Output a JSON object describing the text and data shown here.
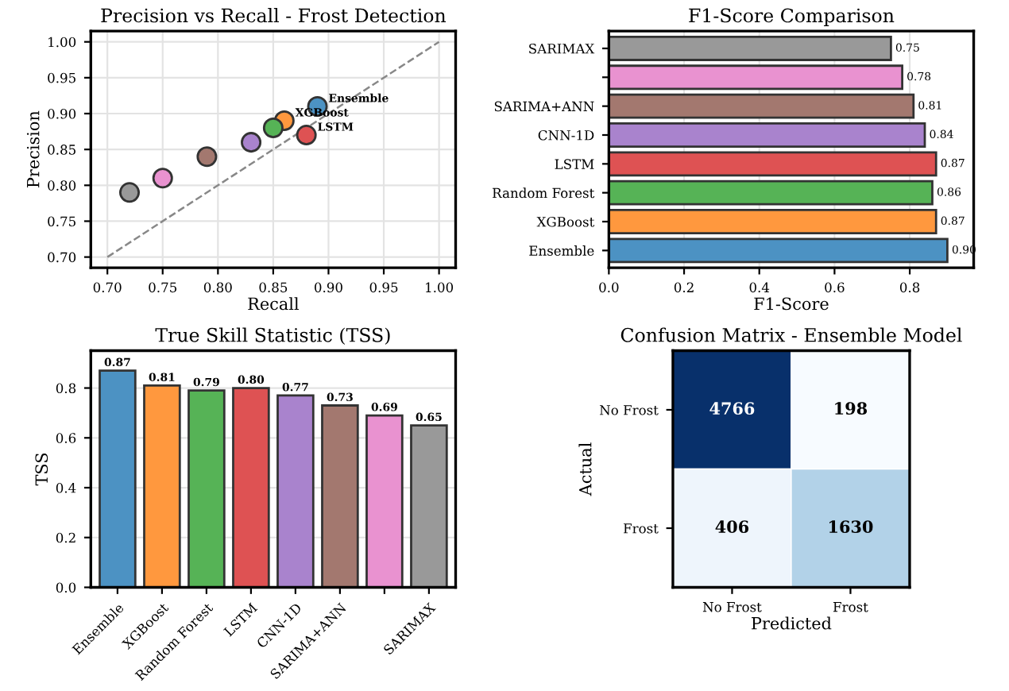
{
  "chart_data": [
    {
      "type": "scatter",
      "title": "Precision vs Recall - Frost Detection",
      "xlabel": "Recall",
      "ylabel": "Precision",
      "series": [
        {
          "type": "scatter",
          "x": [
            0.89,
            0.86,
            0.85,
            0.88,
            0.83,
            0.79,
            0.75,
            0.72
          ],
          "values": [
            0.91,
            0.89,
            0.88,
            0.87,
            0.86,
            0.84,
            0.81,
            0.79
          ],
          "colors": [
            "#4c92c3",
            "#ff983e",
            "#56b356",
            "#de5253",
            "#a983cd",
            "#a3786f",
            "#e992d0",
            "#999999"
          ],
          "marker": "circle"
        },
        {
          "type": "line",
          "x": [
            0.7,
            1.0
          ],
          "values": [
            0.7,
            1.0
          ],
          "color": "#888888",
          "line_style": "dashed",
          "marker": "none"
        }
      ],
      "annotations": [
        {
          "text": "Ensemble",
          "x": 0.89,
          "y": 0.91
        },
        {
          "text": "XGBoost",
          "x": 0.86,
          "y": 0.89
        },
        {
          "text": "LSTM",
          "x": 0.88,
          "y": 0.87
        }
      ],
      "xlim": [
        0.685,
        1.015
      ],
      "ylim": [
        0.685,
        1.015
      ],
      "xticks": [
        {
          "value": 0.7,
          "label": "0.70"
        },
        {
          "value": 0.75,
          "label": "0.75"
        },
        {
          "value": 0.8,
          "label": "0.80"
        },
        {
          "value": 0.85,
          "label": "0.85"
        },
        {
          "value": 0.9,
          "label": "0.90"
        },
        {
          "value": 0.95,
          "label": "0.95"
        },
        {
          "value": 1.0,
          "label": "1.00"
        }
      ],
      "yticks": [
        {
          "value": 0.7,
          "label": "0.70"
        },
        {
          "value": 0.75,
          "label": "0.75"
        },
        {
          "value": 0.8,
          "label": "0.80"
        },
        {
          "value": 0.85,
          "label": "0.85"
        },
        {
          "value": 0.9,
          "label": "0.90"
        },
        {
          "value": 0.95,
          "label": "0.95"
        },
        {
          "value": 1.0,
          "label": "1.00"
        }
      ],
      "grid": true,
      "legend": false
    },
    {
      "type": "bar",
      "orientation": "horizontal",
      "title": "F1-Score Comparison",
      "xlabel": "F1-Score",
      "categories": [
        "SARIMAX",
        null,
        "SARIMA+ANN",
        "CNN-1D",
        "LSTM",
        "Random Forest",
        "XGBoost",
        "Ensemble"
      ],
      "values": [
        0.75,
        0.78,
        0.81,
        0.84,
        0.87,
        0.86,
        0.87,
        0.9
      ],
      "value_labels": [
        "0.75",
        "0.78",
        "0.81",
        "0.84",
        "0.87",
        "0.86",
        "0.87",
        "0.90"
      ],
      "colors": [
        "#999999",
        "#e992d0",
        "#a3786f",
        "#a983cd",
        "#de5253",
        "#56b356",
        "#ff983e",
        "#4c92c3"
      ],
      "xlim": [
        0,
        0.97
      ],
      "xticks": [
        {
          "value": 0,
          "label": "0.0"
        },
        {
          "value": 0.2,
          "label": "0.2"
        },
        {
          "value": 0.4,
          "label": "0.4"
        },
        {
          "value": 0.6,
          "label": "0.6"
        },
        {
          "value": 0.8,
          "label": "0.8"
        }
      ],
      "grid": "x",
      "legend": false
    },
    {
      "type": "bar",
      "title": "True Skill Statistic (TSS)",
      "ylabel": "TSS",
      "categories": [
        "Ensemble",
        "XGBoost",
        "Random Forest",
        "LSTM",
        "CNN-1D",
        "SARIMA+ANN",
        null,
        "SARIMAX"
      ],
      "values": [
        0.87,
        0.81,
        0.79,
        0.8,
        0.77,
        0.73,
        0.69,
        0.65
      ],
      "value_labels": [
        "0.87",
        "0.81",
        "0.79",
        "0.80",
        "0.77",
        "0.73",
        "0.69",
        "0.65"
      ],
      "colors": [
        "#4c92c3",
        "#ff983e",
        "#56b356",
        "#de5253",
        "#a983cd",
        "#a3786f",
        "#e992d0",
        "#999999"
      ],
      "ylim": [
        0,
        0.95
      ],
      "yticks": [
        {
          "value": 0,
          "label": "0.0"
        },
        {
          "value": 0.2,
          "label": "0.2"
        },
        {
          "value": 0.4,
          "label": "0.4"
        },
        {
          "value": 0.6,
          "label": "0.6"
        },
        {
          "value": 0.8,
          "label": "0.8"
        }
      ],
      "grid": "y",
      "legend": false
    },
    {
      "type": "heatmap",
      "title": "Confusion Matrix - Ensemble Model",
      "xlabel": "Predicted",
      "ylabel": "Actual",
      "categories": [
        "No Frost",
        "Frost"
      ],
      "y_categories": [
        "No Frost",
        "Frost"
      ],
      "cells": [
        [
          4766,
          198
        ],
        [
          406,
          1630
        ]
      ],
      "data_labels": true,
      "grid": false,
      "legend": false
    }
  ]
}
